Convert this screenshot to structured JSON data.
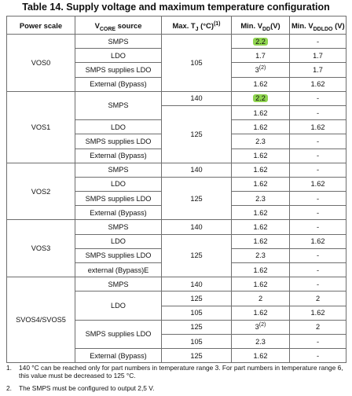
{
  "title": "Table 14. Supply voltage and maximum temperature configuration",
  "headers": {
    "power_scale": "Power scale",
    "vcore_prefix": "V",
    "vcore_sub": "CORE",
    "vcore_suffix": " source",
    "tj_prefix": "Max. T",
    "tj_sub": "J",
    "tj_suffix": " (°C)",
    "tj_sup": "(1)",
    "vdd_prefix": "Min. V",
    "vdd_sub": "DD",
    "vdd_suffix": "(V)",
    "vddldo_prefix": "Min. V",
    "vddldo_sub": "DDLDO",
    "vddldo_suffix": " (V)"
  },
  "rows": {
    "r1": {
      "scale": "VOS0",
      "source": "SMPS",
      "tj": "105",
      "vdd": "2.2",
      "vddldo": "-"
    },
    "r2": {
      "source": "LDO",
      "vdd": "1.7",
      "vddldo": "1.7"
    },
    "r3": {
      "source": "SMPS supplies LDO",
      "vdd": "3",
      "vdd_sup": "(2)",
      "vddldo": "1.7"
    },
    "r4": {
      "source": "External (Bypass)",
      "vdd": "1.62",
      "vddldo": "1.62"
    },
    "r5": {
      "scale": "VOS1",
      "source": "SMPS",
      "tj": "140",
      "vdd": "2.2",
      "vddldo": "-"
    },
    "r6": {
      "tj": "125",
      "vdd": "1.62",
      "vddldo": "-"
    },
    "r7": {
      "source": "LDO",
      "vdd": "1.62",
      "vddldo": "1.62"
    },
    "r8": {
      "source": "SMPS supplies LDO",
      "vdd": "2.3",
      "vddldo": "-"
    },
    "r9": {
      "source": "External (Bypass)",
      "vdd": "1.62",
      "vddldo": "-"
    },
    "r10": {
      "scale": "VOS2",
      "source": "SMPS",
      "tj": "140",
      "vdd": "1.62",
      "vddldo": "-"
    },
    "r11": {
      "source": "LDO",
      "tj": "125",
      "vdd": "1.62",
      "vddldo": "1.62"
    },
    "r12": {
      "source": "SMPS supplies LDO",
      "vdd": "2.3",
      "vddldo": "-"
    },
    "r13": {
      "source": "External (Bypass)",
      "vdd": "1.62",
      "vddldo": "-"
    },
    "r14": {
      "scale": "VOS3",
      "source": "SMPS",
      "tj": "140",
      "vdd": "1.62",
      "vddldo": "-"
    },
    "r15": {
      "source": "LDO",
      "tj": "125",
      "vdd": "1.62",
      "vddldo": "1.62"
    },
    "r16": {
      "source": "SMPS supplies LDO",
      "vdd": "2.3",
      "vddldo": "-"
    },
    "r17": {
      "source": "external (Bypass)E",
      "vdd": "1.62",
      "vddldo": "-"
    },
    "r18": {
      "scale": "SVOS4/SVOS5",
      "source": "SMPS",
      "tj": "140",
      "vdd": "1.62",
      "vddldo": "-"
    },
    "r19": {
      "source": "LDO",
      "tj": "125",
      "vdd": "2",
      "vddldo": "2"
    },
    "r20": {
      "tj": "105",
      "vdd": "1.62",
      "vddldo": "1.62"
    },
    "r21": {
      "source": "SMPS supplies LDO",
      "tj": "125",
      "vdd": "3",
      "vdd_sup": "(2)",
      "vddldo": "2"
    },
    "r22": {
      "tj": "105",
      "vdd": "2.3",
      "vddldo": "-"
    },
    "r23": {
      "source": "External (Bypass)",
      "tj": "125",
      "vdd": "1.62",
      "vddldo": "-"
    }
  },
  "footnotes": [
    {
      "num": "1.",
      "text": "140 °C can be reached only for part numbers in temperature range 3. For part numbers in temperature range 6, this value must be decreased to 125 °C."
    },
    {
      "num": "2.",
      "text": "The SMPS must be configured to output 2,5 V."
    }
  ],
  "highlight_color": "#8fd44f"
}
